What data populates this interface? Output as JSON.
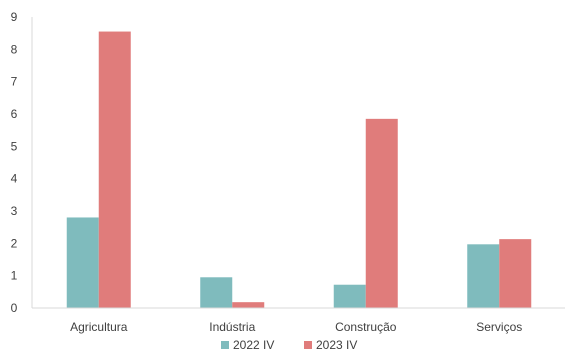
{
  "chart_data": {
    "type": "bar",
    "title": "",
    "xlabel": "",
    "ylabel": "",
    "categories": [
      "Agricultura",
      "Indústria",
      "Construção",
      "Serviços"
    ],
    "series": [
      {
        "name": "2022 IV",
        "color": "#7fbbbd",
        "values": [
          2.8,
          0.95,
          0.72,
          1.97
        ]
      },
      {
        "name": "2023 IV",
        "color": "#e07c7b",
        "values": [
          8.55,
          0.18,
          5.85,
          2.13
        ]
      }
    ],
    "ylim": [
      0,
      9
    ],
    "yticks": [
      "0",
      "1",
      "2",
      "3",
      "4",
      "5",
      "6",
      "7",
      "8",
      "9"
    ],
    "grid": false,
    "legend_position": "bottom"
  }
}
